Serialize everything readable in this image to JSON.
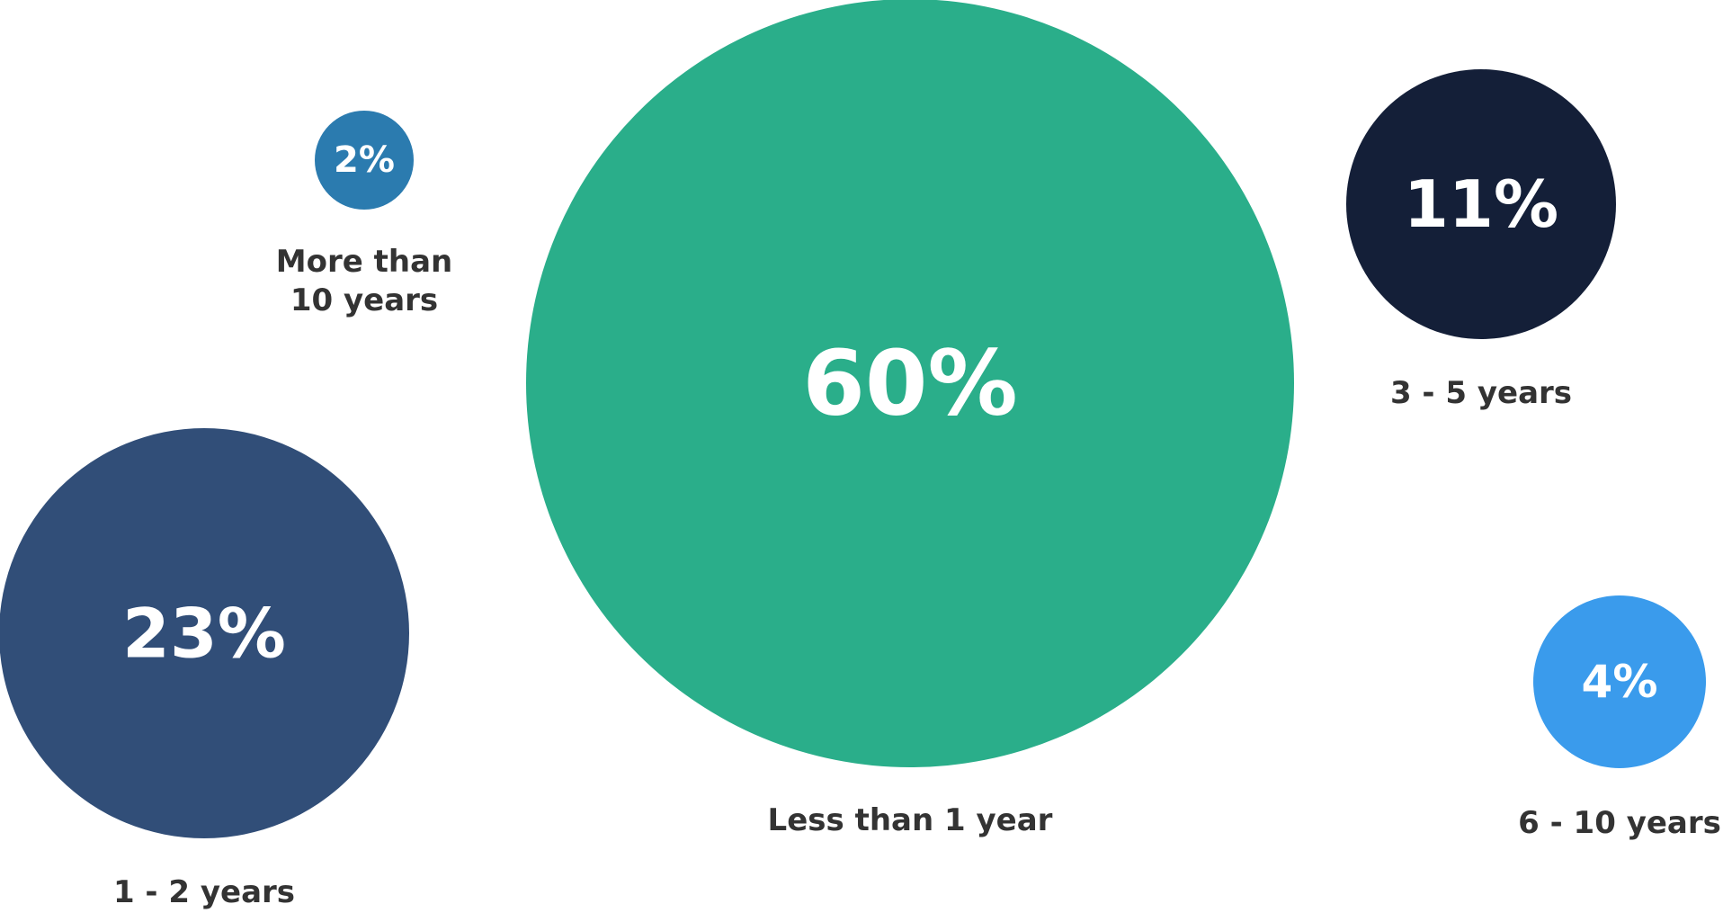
{
  "chart_data": {
    "type": "bubble",
    "unit": "%",
    "series": [
      {
        "category": "Less than 1 year",
        "value": 60,
        "display": "60%",
        "color": "#2AAE8A"
      },
      {
        "category": "1 - 2 years",
        "value": 23,
        "display": "23%",
        "color": "#314E78"
      },
      {
        "category": "3 - 5 years",
        "value": 11,
        "display": "11%",
        "color": "#141F38"
      },
      {
        "category": "6 - 10 years",
        "value": 4,
        "display": "4%",
        "color": "#3A9BEC"
      },
      {
        "category": "More than 10 years",
        "label_lines": [
          "More than",
          "10 years"
        ],
        "value": 2,
        "display": "2%",
        "color": "#2B7BAF"
      }
    ]
  }
}
